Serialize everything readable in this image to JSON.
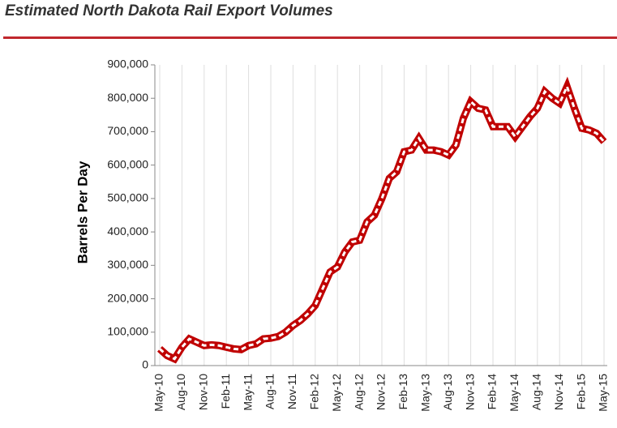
{
  "chart_data": {
    "type": "line",
    "title": "Estimated North Dakota Rail Export Volumes",
    "y_label": "Barrels Per Day",
    "categories": [
      "May-10",
      null,
      null,
      "Aug-10",
      null,
      null,
      "Nov-10",
      null,
      null,
      "Feb-11",
      null,
      null,
      "May-11",
      null,
      null,
      "Aug-11",
      null,
      null,
      "Nov-11",
      null,
      null,
      "Feb-12",
      null,
      null,
      "May-12",
      null,
      null,
      "Aug-12",
      null,
      null,
      "Nov-12",
      null,
      null,
      "Feb-13",
      null,
      null,
      "May-13",
      null,
      null,
      "Aug-13",
      null,
      null,
      "Nov-13",
      null,
      null,
      "Feb-14",
      null,
      null,
      "May-14",
      null,
      null,
      "Aug-14",
      null,
      null,
      "Nov-14",
      null,
      null,
      "Feb-15",
      null,
      null,
      "May-15"
    ],
    "values": [
      50000,
      30000,
      20000,
      55000,
      80000,
      70000,
      60000,
      62000,
      60000,
      55000,
      50000,
      48000,
      60000,
      65000,
      80000,
      82000,
      87000,
      100000,
      120000,
      135000,
      155000,
      180000,
      230000,
      280000,
      295000,
      340000,
      370000,
      375000,
      430000,
      450000,
      500000,
      560000,
      580000,
      640000,
      645000,
      680000,
      645000,
      645000,
      640000,
      630000,
      660000,
      740000,
      790000,
      770000,
      765000,
      715000,
      715000,
      715000,
      685000,
      715000,
      745000,
      770000,
      820000,
      800000,
      785000,
      835000,
      770000,
      710000,
      705000,
      695000,
      670000
    ],
    "color": "#c00000",
    "ylim": [
      0,
      900000
    ],
    "yticks": [
      0,
      {
        "value": 100000,
        "label": "100,000"
      },
      {
        "value": 200000,
        "label": "200,000"
      },
      {
        "value": 300000,
        "label": "300,000"
      },
      {
        "value": 400000,
        "label": "400,000"
      },
      {
        "value": 500000,
        "label": "500,000"
      },
      {
        "value": 600000,
        "label": "600,000"
      },
      {
        "value": 700000,
        "label": "700,000"
      },
      {
        "value": 800000,
        "label": "800,000"
      },
      {
        "value": 900000,
        "label": "900,000"
      }
    ],
    "grid": true
  }
}
